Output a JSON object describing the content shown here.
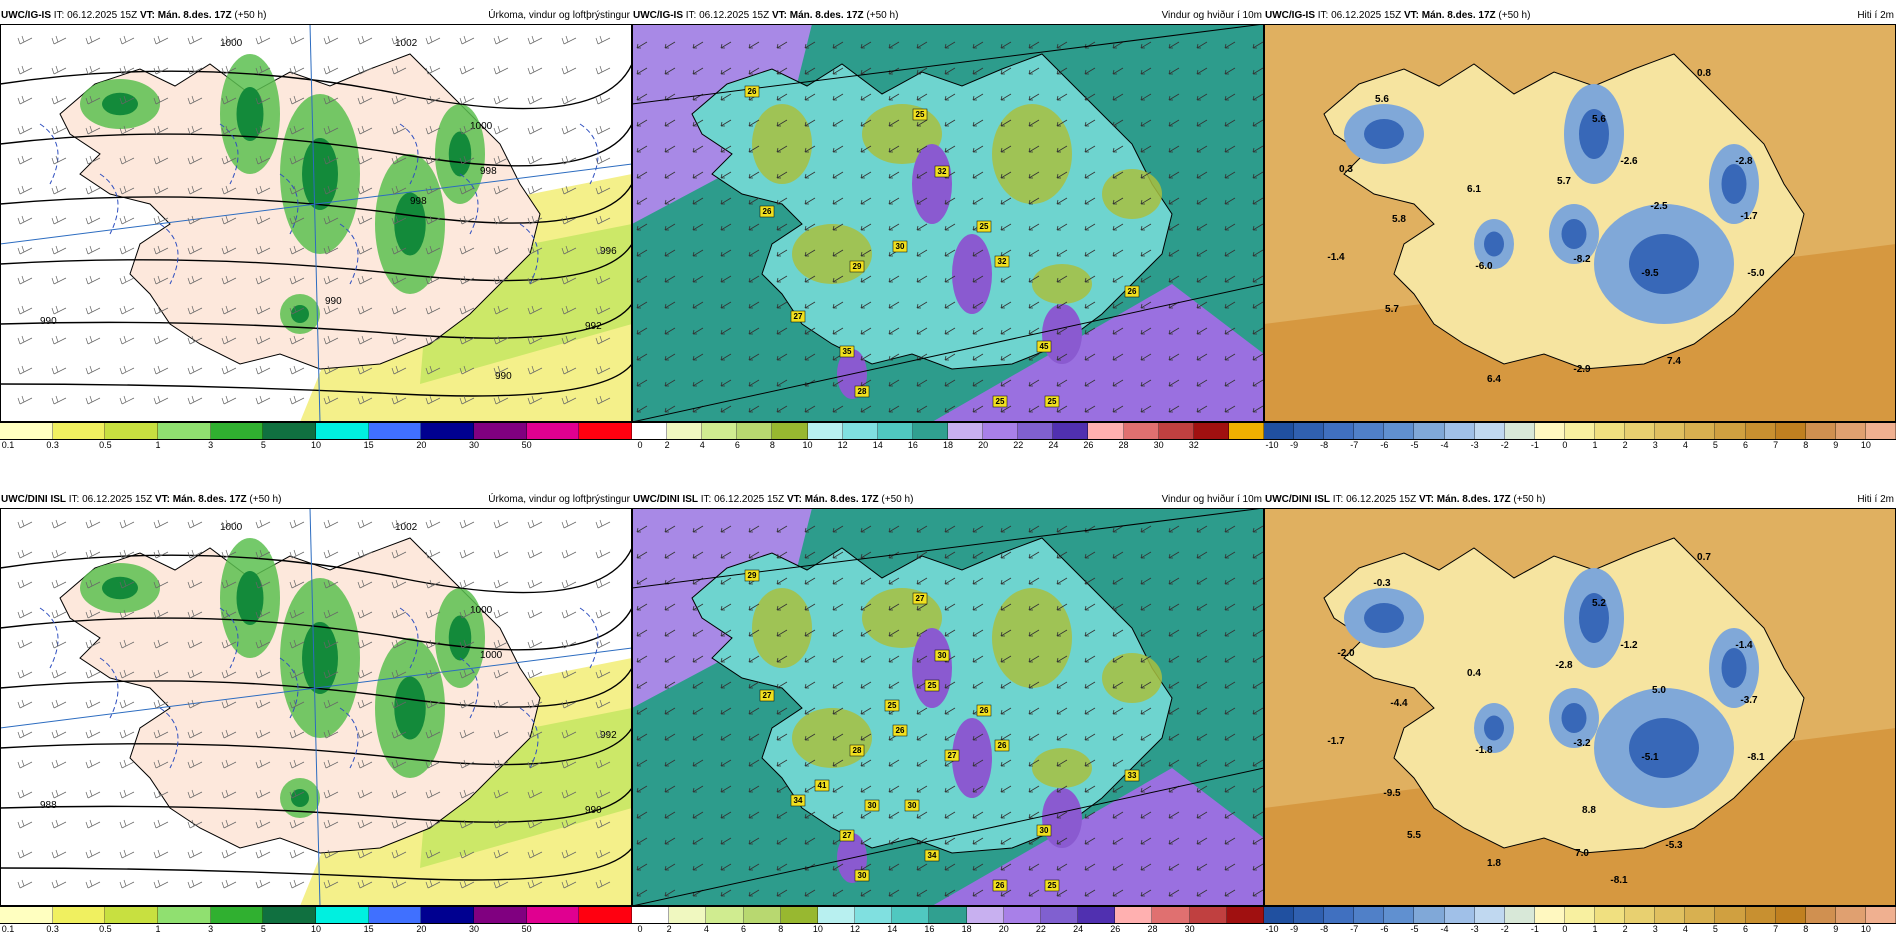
{
  "panels": [
    {
      "id": "igis-precip",
      "model": "UWC/IG-IS",
      "it": "IT: 06.12.2025 15Z",
      "vt_label": "VT:",
      "vt": "Mán. 8.des. 17Z",
      "lead": "(+50 h)",
      "title": "Úrkoma, vindur og loftþrýstingur",
      "type": "precip",
      "colorbar": {
        "colors": [
          "#ffffc0",
          "#f0f060",
          "#c8e040",
          "#90e070",
          "#30b030",
          "#107040",
          "#00f0e0",
          "#4070ff",
          "#000090",
          "#800080",
          "#e00090",
          "#ff0010"
        ],
        "ticks": [
          "0.1",
          "0.3",
          "0.5",
          "1",
          "3",
          "5",
          "10",
          "15",
          "20",
          "30",
          "50"
        ]
      },
      "labels": []
    },
    {
      "id": "igis-wind",
      "model": "UWC/IG-IS",
      "it": "IT: 06.12.2025 15Z",
      "vt_label": "VT:",
      "vt": "Mán. 8.des. 17Z",
      "lead": "(+50 h)",
      "title": "Vindur og hviður í 10m",
      "type": "wind",
      "colorbar": {
        "colors": [
          "#ffffff",
          "#f0f8c0",
          "#d0ec90",
          "#b8d870",
          "#98b830",
          "#b8f0f0",
          "#80e0e0",
          "#50c8c0",
          "#30a090",
          "#c8b0f0",
          "#a880e8",
          "#8060d0",
          "#5030b0",
          "#ffb0b0",
          "#e07070",
          "#c04040",
          "#a01010",
          "#f0b000"
        ],
        "ticks": [
          "0",
          "2",
          "4",
          "6",
          "8",
          "10",
          "12",
          "14",
          "16",
          "18",
          "20",
          "22",
          "24",
          "26",
          "28",
          "30",
          "32"
        ]
      },
      "labels": [
        "26",
        "25",
        "32",
        "26",
        "25",
        "30",
        "29",
        "32",
        "27",
        "35",
        "28",
        "26",
        "45",
        "25",
        "25"
      ]
    },
    {
      "id": "igis-temp",
      "model": "UWC/IG-IS",
      "it": "IT: 06.12.2025 15Z",
      "vt_label": "VT:",
      "vt": "Mán. 8.des. 17Z",
      "lead": "(+50 h)",
      "title": "Hiti í 2m",
      "type": "temp",
      "colorbar": {
        "colors": [
          "#2050a0",
          "#3060b0",
          "#4070c0",
          "#5080c8",
          "#6090d0",
          "#80a8d8",
          "#a0c0e8",
          "#c0d8f0",
          "#d8e8d8",
          "#fff8c0",
          "#f8f0a0",
          "#f0e080",
          "#e8d070",
          "#e0c060",
          "#d8b050",
          "#d0a040",
          "#c89030",
          "#c08020",
          "#d09050",
          "#e0a070",
          "#f0b090"
        ],
        "ticks": [
          "-10",
          "-9",
          "-8",
          "-7",
          "-6",
          "-5",
          "-4",
          "-3",
          "-2",
          "-1",
          "0",
          "1",
          "2",
          "3",
          "4",
          "5",
          "6",
          "7",
          "8",
          "9",
          "10"
        ]
      },
      "labels": [
        "5.6",
        "0.8",
        "5.6",
        "-2.6",
        "-2.8",
        "0.3",
        "5.7",
        "6.1",
        "-2.5",
        "-1.7",
        "5.8",
        "-1.4",
        "-6.0",
        "-8.2",
        "-9.5",
        "-5.0",
        "5.7",
        "7.4",
        "-2.9",
        "6.4"
      ]
    },
    {
      "id": "dini-precip",
      "model": "UWC/DINI ISL",
      "it": "IT: 06.12.2025 15Z",
      "vt_label": "VT:",
      "vt": "Mán. 8.des. 17Z",
      "lead": "(+50 h)",
      "title": "Úrkoma, vindur og loftþrýstingur",
      "type": "precip",
      "colorbar": {
        "colors": [
          "#ffffc0",
          "#f0f060",
          "#c8e040",
          "#90e070",
          "#30b030",
          "#107040",
          "#00f0e0",
          "#4070ff",
          "#000090",
          "#800080",
          "#e00090",
          "#ff0010"
        ],
        "ticks": [
          "0.1",
          "0.3",
          "0.5",
          "1",
          "3",
          "5",
          "10",
          "15",
          "20",
          "30",
          "50"
        ]
      },
      "labels": []
    },
    {
      "id": "dini-wind",
      "model": "UWC/DINI ISL",
      "it": "IT: 06.12.2025 15Z",
      "vt_label": "VT:",
      "vt": "Mán. 8.des. 17Z",
      "lead": "(+50 h)",
      "title": "Vindur og hviður í 10m",
      "type": "wind",
      "colorbar": {
        "colors": [
          "#ffffff",
          "#f0f8c0",
          "#d0ec90",
          "#b8d870",
          "#98b830",
          "#b8f0f0",
          "#80e0e0",
          "#50c8c0",
          "#30a090",
          "#c8b0f0",
          "#a880e8",
          "#8060d0",
          "#5030b0",
          "#ffb0b0",
          "#e07070",
          "#c04040",
          "#a01010"
        ],
        "ticks": [
          "0",
          "2",
          "4",
          "6",
          "8",
          "10",
          "12",
          "14",
          "16",
          "18",
          "20",
          "22",
          "24",
          "26",
          "28",
          "30"
        ]
      },
      "labels": [
        "29",
        "27",
        "30",
        "27",
        "26",
        "26",
        "28",
        "26",
        "34",
        "27",
        "30",
        "33",
        "30",
        "26",
        "25",
        "25",
        "25",
        "27",
        "41",
        "30",
        "34",
        "30"
      ]
    },
    {
      "id": "dini-temp",
      "model": "UWC/DINI ISL",
      "it": "IT: 06.12.2025 15Z",
      "vt_label": "VT:",
      "vt": "Mán. 8.des. 17Z",
      "lead": "(+50 h)",
      "title": "Hiti í 2m",
      "type": "temp",
      "colorbar": {
        "colors": [
          "#2050a0",
          "#3060b0",
          "#4070c0",
          "#5080c8",
          "#6090d0",
          "#80a8d8",
          "#a0c0e8",
          "#c0d8f0",
          "#d8e8d8",
          "#fff8c0",
          "#f8f0a0",
          "#f0e080",
          "#e8d070",
          "#e0c060",
          "#d8b050",
          "#d0a040",
          "#c89030",
          "#c08020",
          "#d09050",
          "#e0a070",
          "#f0b090"
        ],
        "ticks": [
          "-10",
          "-9",
          "-8",
          "-7",
          "-6",
          "-5",
          "-4",
          "-3",
          "-2",
          "-1",
          "0",
          "1",
          "2",
          "3",
          "4",
          "5",
          "6",
          "7",
          "8",
          "9",
          "10"
        ]
      },
      "labels": [
        "-0.3",
        "0.7",
        "5.2",
        "-1.2",
        "-1.4",
        "-2.0",
        "-2.8",
        "0.4",
        "5.0",
        "-3.7",
        "-4.4",
        "-1.7",
        "-1.8",
        "-3.2",
        "-5.1",
        "-8.1",
        "-9.5",
        "-5.3",
        "7.0",
        "1.8",
        "5.5",
        "-8.1",
        "8.8"
      ]
    }
  ],
  "isobars": [
    "1000",
    "1002",
    "1000",
    "998",
    "996",
    "990",
    "992",
    "990",
    "990",
    "998"
  ],
  "isobars_b": [
    "1000",
    "1002",
    "1000",
    "1000",
    "992",
    "988",
    "990"
  ]
}
